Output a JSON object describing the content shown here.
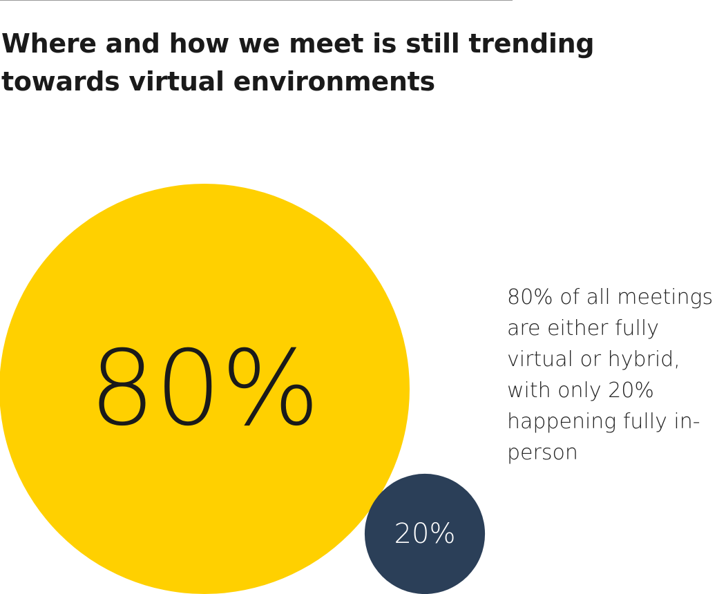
{
  "chart_data": {
    "type": "bubble",
    "title": "Where and how we meet is still trending towards virtual environments",
    "values": [
      80,
      20
    ],
    "value_labels": [
      "80%",
      "20%"
    ],
    "colors": [
      "#ffd000",
      "#2b3f58"
    ],
    "annotation": "80% of all meetings are either fully virtual or hybrid, with only 20% happening fully in-person"
  }
}
